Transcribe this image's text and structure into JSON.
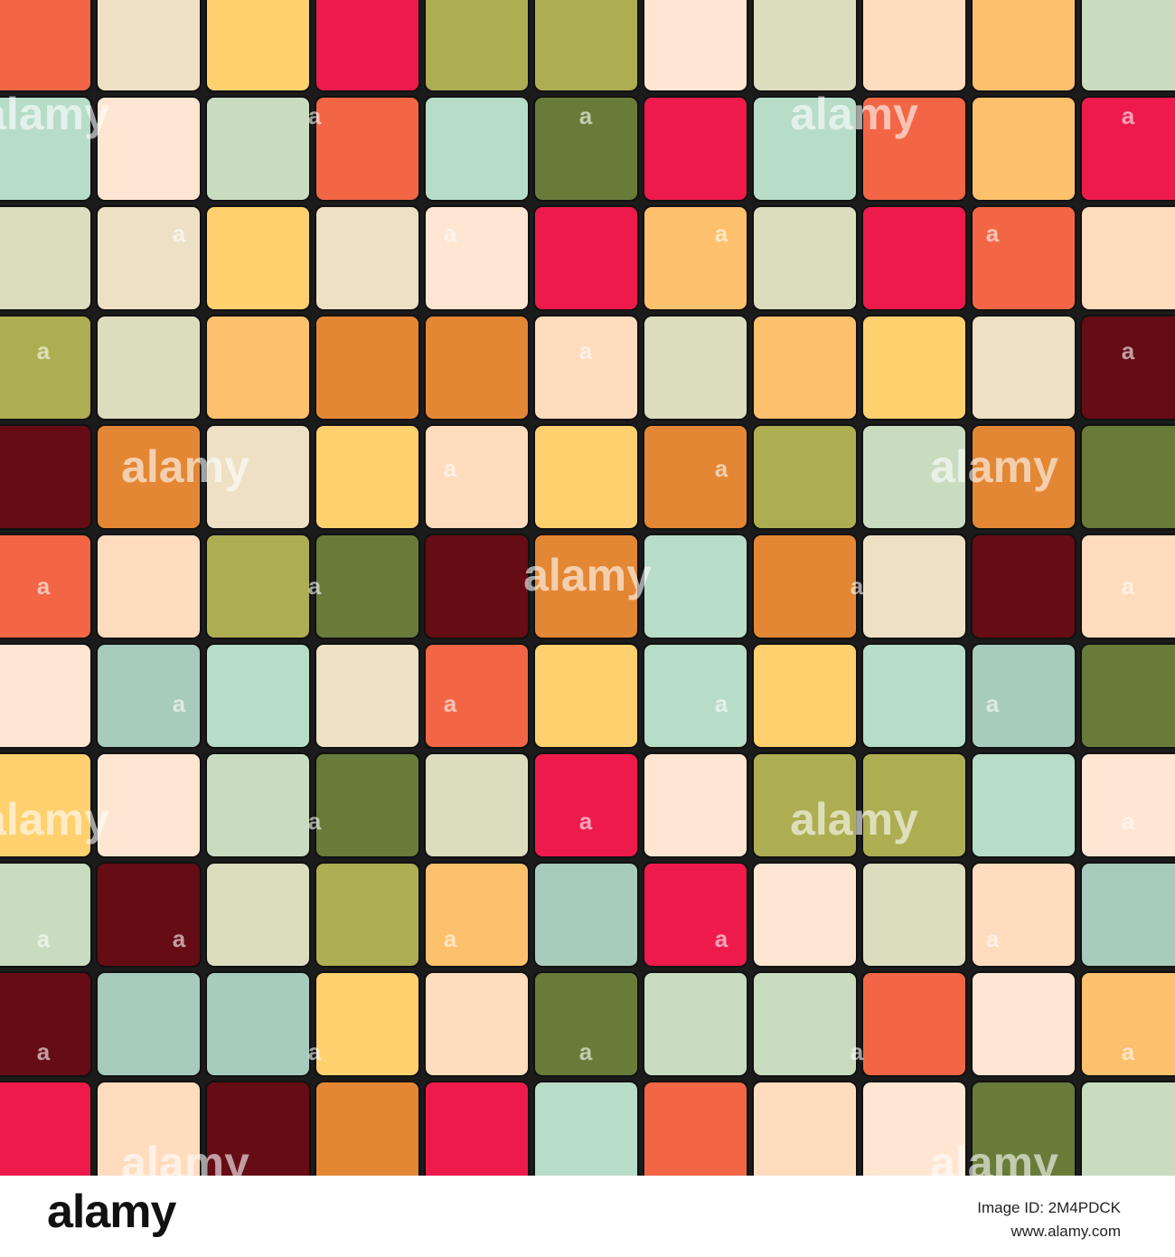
{
  "watermark": "alamy",
  "watermark_mark": "a",
  "footer": {
    "logo": "alamy",
    "image_id": "Image ID: 2M4PDCK",
    "url": "www.alamy.com"
  }
}
